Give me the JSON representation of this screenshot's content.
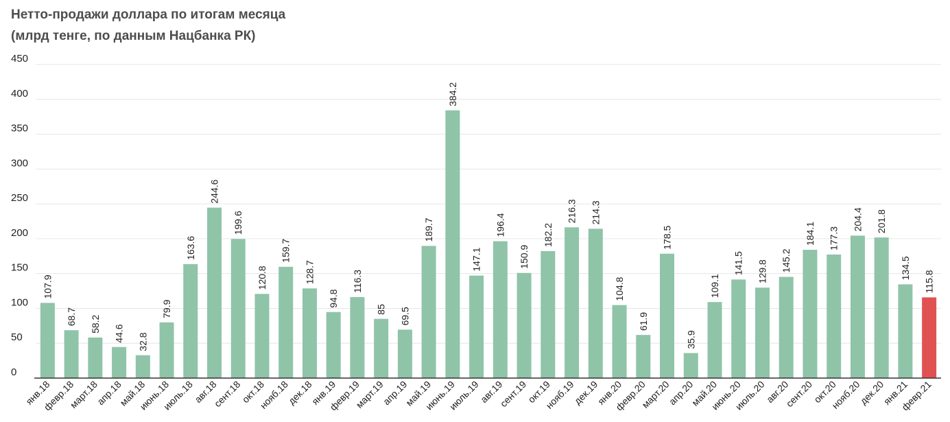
{
  "title_line1": "Нетто-продажи доллара по итогам месяца",
  "title_line2": "(млрд тенге, по данным Нацбанка РК)",
  "colors": {
    "bar": "#8fc4a8",
    "highlight": "#e05252",
    "grid": "#e6e6e6",
    "axis": "#333333"
  },
  "chart_data": {
    "type": "bar",
    "title": "Нетто-продажи доллара по итогам месяца (млрд тенге, по данным Нацбанка РК)",
    "xlabel": "",
    "ylabel": "",
    "ylim": [
      0,
      450
    ],
    "yticks": [
      0,
      50,
      100,
      150,
      200,
      250,
      300,
      350,
      400,
      450
    ],
    "grid": true,
    "highlight_index": 37,
    "categories": [
      "янв.18",
      "февр.18",
      "март.18",
      "апр.18",
      "май.18",
      "июнь.18",
      "июль.18",
      "авг.18",
      "сент.18",
      "окт.18",
      "нояб.18",
      "дек.18",
      "янв.19",
      "февр.19",
      "март.19",
      "апр.19",
      "май.19",
      "июнь.19",
      "июль.19",
      "авг.19",
      "сент.19",
      "окт.19",
      "нояб.19",
      "дек.19",
      "янв.20",
      "февр.20",
      "март.20",
      "апр.20",
      "май.20",
      "июнь.20",
      "июль.20",
      "авг.20",
      "сент.20",
      "окт.20",
      "нояб.20",
      "дек.20",
      "янв.21",
      "февр.21"
    ],
    "values": [
      107.9,
      68.7,
      58.2,
      44.6,
      32.8,
      79.9,
      163.6,
      244.6,
      199.6,
      120.8,
      159.7,
      128.7,
      94.8,
      116.3,
      85,
      69.5,
      189.7,
      384.2,
      147.1,
      196.4,
      150.9,
      182.2,
      216.3,
      214.3,
      104.8,
      61.9,
      178.5,
      35.9,
      109.1,
      141.5,
      129.8,
      145.2,
      184.1,
      177.3,
      204.4,
      201.8,
      134.5,
      115.8
    ]
  }
}
